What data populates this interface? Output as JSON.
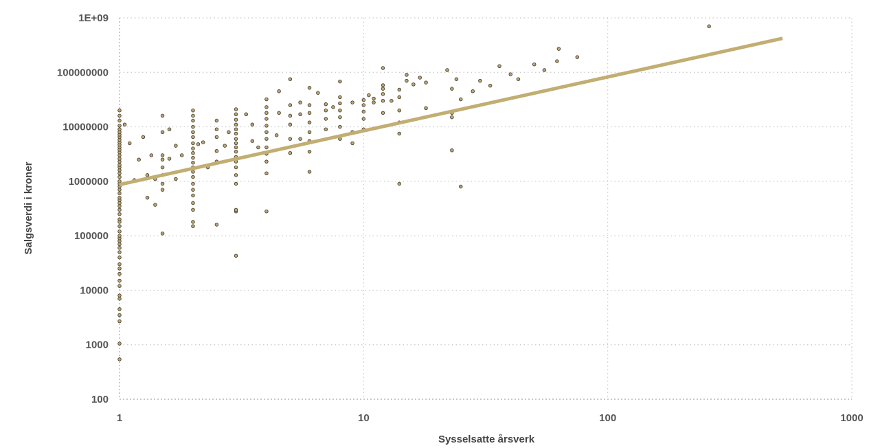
{
  "chart_data": {
    "type": "scatter",
    "xlabel": "Sysselsatte årsverk",
    "ylabel": "Salgsverdi i kroner",
    "x_scale": "log",
    "y_scale": "log",
    "xlim": [
      1,
      1000
    ],
    "ylim": [
      100,
      1000000000
    ],
    "x_ticks": [
      "1",
      "10",
      "100",
      "1000"
    ],
    "y_ticks": [
      "100",
      "1000",
      "10000",
      "100000",
      "1000000",
      "10000000",
      "100000000",
      "1E+09"
    ],
    "grid": true,
    "colors": {
      "point_fill": "#b8a878",
      "point_stroke": "#4a4030",
      "trendline": "#c2ae72"
    },
    "trendline": {
      "type": "power",
      "points": [
        [
          1,
          870000
        ],
        [
          520,
          420000000
        ]
      ]
    },
    "points": [
      [
        1,
        540
      ],
      [
        1,
        1050
      ],
      [
        1,
        2700
      ],
      [
        1,
        3500
      ],
      [
        1,
        4500
      ],
      [
        1,
        7000
      ],
      [
        1,
        8000
      ],
      [
        1,
        12000
      ],
      [
        1,
        15000
      ],
      [
        1,
        20000
      ],
      [
        1,
        25000
      ],
      [
        1,
        30000
      ],
      [
        1,
        40000
      ],
      [
        1,
        50000
      ],
      [
        1,
        60000
      ],
      [
        1,
        70000
      ],
      [
        1,
        80000
      ],
      [
        1,
        90000
      ],
      [
        1,
        100000
      ],
      [
        1,
        120000
      ],
      [
        1,
        150000
      ],
      [
        1,
        180000
      ],
      [
        1,
        200000
      ],
      [
        1,
        250000
      ],
      [
        1,
        300000
      ],
      [
        1,
        350000
      ],
      [
        1,
        400000
      ],
      [
        1,
        450000
      ],
      [
        1,
        500000
      ],
      [
        1,
        600000
      ],
      [
        1,
        700000
      ],
      [
        1,
        800000
      ],
      [
        1,
        900000
      ],
      [
        1,
        1000000
      ],
      [
        1,
        1200000
      ],
      [
        1,
        1400000
      ],
      [
        1,
        1600000
      ],
      [
        1,
        1800000
      ],
      [
        1,
        2000000
      ],
      [
        1,
        2300000
      ],
      [
        1,
        2600000
      ],
      [
        1,
        3000000
      ],
      [
        1,
        3400000
      ],
      [
        1,
        3800000
      ],
      [
        1,
        4200000
      ],
      [
        1,
        4700000
      ],
      [
        1,
        5200000
      ],
      [
        1,
        5800000
      ],
      [
        1,
        6500000
      ],
      [
        1,
        7200000
      ],
      [
        1,
        8000000
      ],
      [
        1,
        9000000
      ],
      [
        1,
        10500000
      ],
      [
        1,
        13000000
      ],
      [
        1,
        16000000
      ],
      [
        1,
        20000000
      ],
      [
        1.05,
        11000000
      ],
      [
        1.1,
        5000000
      ],
      [
        1.15,
        1050000
      ],
      [
        1.2,
        2500000
      ],
      [
        1.25,
        6500000
      ],
      [
        1.3,
        1300000
      ],
      [
        1.3,
        500000
      ],
      [
        1.35,
        3000000
      ],
      [
        1.4,
        1100000
      ],
      [
        1.4,
        370000
      ],
      [
        1.5,
        110000
      ],
      [
        1.5,
        16000000
      ],
      [
        1.5,
        8000000
      ],
      [
        1.5,
        3000000
      ],
      [
        1.5,
        2500000
      ],
      [
        1.5,
        1800000
      ],
      [
        1.5,
        1300000
      ],
      [
        1.5,
        900000
      ],
      [
        1.5,
        700000
      ],
      [
        1.6,
        2600000
      ],
      [
        1.6,
        9000000
      ],
      [
        1.7,
        4500000
      ],
      [
        1.7,
        1100000
      ],
      [
        1.8,
        3000000
      ],
      [
        2,
        150000
      ],
      [
        2,
        180000
      ],
      [
        2,
        300000
      ],
      [
        2,
        400000
      ],
      [
        2,
        550000
      ],
      [
        2,
        700000
      ],
      [
        2,
        900000
      ],
      [
        2,
        1200000
      ],
      [
        2,
        1500000
      ],
      [
        2,
        1800000
      ],
      [
        2,
        2200000
      ],
      [
        2,
        2700000
      ],
      [
        2,
        3300000
      ],
      [
        2,
        4000000
      ],
      [
        2,
        5000000
      ],
      [
        2,
        6500000
      ],
      [
        2,
        8000000
      ],
      [
        2,
        10000000
      ],
      [
        2,
        13000000
      ],
      [
        2,
        16000000
      ],
      [
        2,
        20000000
      ],
      [
        2.1,
        4800000
      ],
      [
        2.2,
        5200000
      ],
      [
        2.3,
        1800000
      ],
      [
        2.5,
        160000
      ],
      [
        2.5,
        2300000
      ],
      [
        2.5,
        3600000
      ],
      [
        2.5,
        6500000
      ],
      [
        2.5,
        9000000
      ],
      [
        2.5,
        13000000
      ],
      [
        2.7,
        4500000
      ],
      [
        2.8,
        8000000
      ],
      [
        3,
        43000
      ],
      [
        3,
        280000
      ],
      [
        3,
        300000
      ],
      [
        3,
        900000
      ],
      [
        3,
        1300000
      ],
      [
        3,
        1800000
      ],
      [
        3,
        2300000
      ],
      [
        3,
        2800000
      ],
      [
        3,
        3500000
      ],
      [
        3,
        4200000
      ],
      [
        3,
        5000000
      ],
      [
        3,
        6000000
      ],
      [
        3,
        7500000
      ],
      [
        3,
        9000000
      ],
      [
        3,
        11000000
      ],
      [
        3,
        13500000
      ],
      [
        3,
        17000000
      ],
      [
        3,
        21000000
      ],
      [
        3.3,
        17000000
      ],
      [
        3.5,
        5500000
      ],
      [
        3.5,
        11000000
      ],
      [
        3.7,
        4200000
      ],
      [
        4,
        280000
      ],
      [
        4,
        1400000
      ],
      [
        4,
        2300000
      ],
      [
        4,
        3200000
      ],
      [
        4,
        4200000
      ],
      [
        4,
        6000000
      ],
      [
        4,
        8000000
      ],
      [
        4,
        10500000
      ],
      [
        4,
        14000000
      ],
      [
        4,
        18000000
      ],
      [
        4,
        23000000
      ],
      [
        4,
        32000000
      ],
      [
        4.4,
        7000000
      ],
      [
        4.5,
        45000000
      ],
      [
        4.5,
        18000000
      ],
      [
        5,
        3300000
      ],
      [
        5,
        6000000
      ],
      [
        5,
        11000000
      ],
      [
        5,
        16000000
      ],
      [
        5,
        25000000
      ],
      [
        5,
        75000000
      ],
      [
        5.5,
        6000000
      ],
      [
        5.5,
        17000000
      ],
      [
        5.5,
        28000000
      ],
      [
        6,
        1500000
      ],
      [
        6,
        3500000
      ],
      [
        6,
        5500000
      ],
      [
        6,
        8000000
      ],
      [
        6,
        12000000
      ],
      [
        6,
        18000000
      ],
      [
        6,
        25000000
      ],
      [
        6,
        52000000
      ],
      [
        6.5,
        42000000
      ],
      [
        7,
        9000000
      ],
      [
        7,
        14000000
      ],
      [
        7,
        20000000
      ],
      [
        7,
        26000000
      ],
      [
        7.5,
        23000000
      ],
      [
        8,
        6000000
      ],
      [
        8,
        10000000
      ],
      [
        8,
        15000000
      ],
      [
        8,
        20000000
      ],
      [
        8,
        27000000
      ],
      [
        8,
        35000000
      ],
      [
        8,
        68000000
      ],
      [
        9,
        5000000
      ],
      [
        9,
        8000000
      ],
      [
        9,
        28000000
      ],
      [
        10,
        9000000
      ],
      [
        10,
        14000000
      ],
      [
        10,
        19000000
      ],
      [
        10,
        25000000
      ],
      [
        10,
        31000000
      ],
      [
        10.5,
        38000000
      ],
      [
        11,
        28000000
      ],
      [
        11,
        33000000
      ],
      [
        12,
        18000000
      ],
      [
        12,
        30000000
      ],
      [
        12,
        40000000
      ],
      [
        12,
        50000000
      ],
      [
        12,
        58000000
      ],
      [
        12,
        120000000
      ],
      [
        13,
        30000000
      ],
      [
        14,
        900000
      ],
      [
        14,
        7500000
      ],
      [
        14,
        12000000
      ],
      [
        14,
        20000000
      ],
      [
        14,
        35000000
      ],
      [
        14,
        48000000
      ],
      [
        15,
        70000000
      ],
      [
        15,
        90000000
      ],
      [
        16,
        60000000
      ],
      [
        17,
        80000000
      ],
      [
        18,
        65000000
      ],
      [
        18,
        22000000
      ],
      [
        22,
        110000000
      ],
      [
        23,
        3700000
      ],
      [
        23,
        15000000
      ],
      [
        23,
        18000000
      ],
      [
        23,
        50000000
      ],
      [
        24,
        75000000
      ],
      [
        25,
        800000
      ],
      [
        25,
        32000000
      ],
      [
        28,
        45000000
      ],
      [
        30,
        70000000
      ],
      [
        33,
        57000000
      ],
      [
        36,
        130000000
      ],
      [
        40,
        92000000
      ],
      [
        43,
        75000000
      ],
      [
        50,
        140000000
      ],
      [
        55,
        110000000
      ],
      [
        62,
        160000000
      ],
      [
        63,
        270000000
      ],
      [
        75,
        190000000
      ],
      [
        260,
        700000000
      ]
    ]
  }
}
